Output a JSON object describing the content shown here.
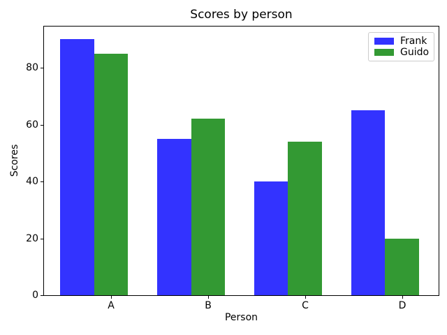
{
  "title": "Scores by person",
  "chart_data": {
    "type": "bar",
    "title": "Scores by person",
    "xlabel": "Person",
    "ylabel": "Scores",
    "categories": [
      "A",
      "B",
      "C",
      "D"
    ],
    "series": [
      {
        "name": "Frank",
        "color": "#3333ff",
        "values": [
          90,
          55,
          40,
          65
        ]
      },
      {
        "name": "Guido",
        "color": "#339933",
        "values": [
          85,
          62,
          54,
          20
        ]
      }
    ],
    "ylim": [
      0,
      94.5
    ],
    "yticks": [
      0,
      20,
      40,
      60,
      80
    ],
    "xlim": [
      -0.692,
      3.378
    ],
    "bar_width_units": 0.35,
    "grid": false,
    "legend_position": "upper right"
  },
  "colors": {
    "background": "#ffffff",
    "spine": "#000000",
    "legend_border": "#cccccc",
    "frank": "#3333ff",
    "guido": "#339933"
  }
}
